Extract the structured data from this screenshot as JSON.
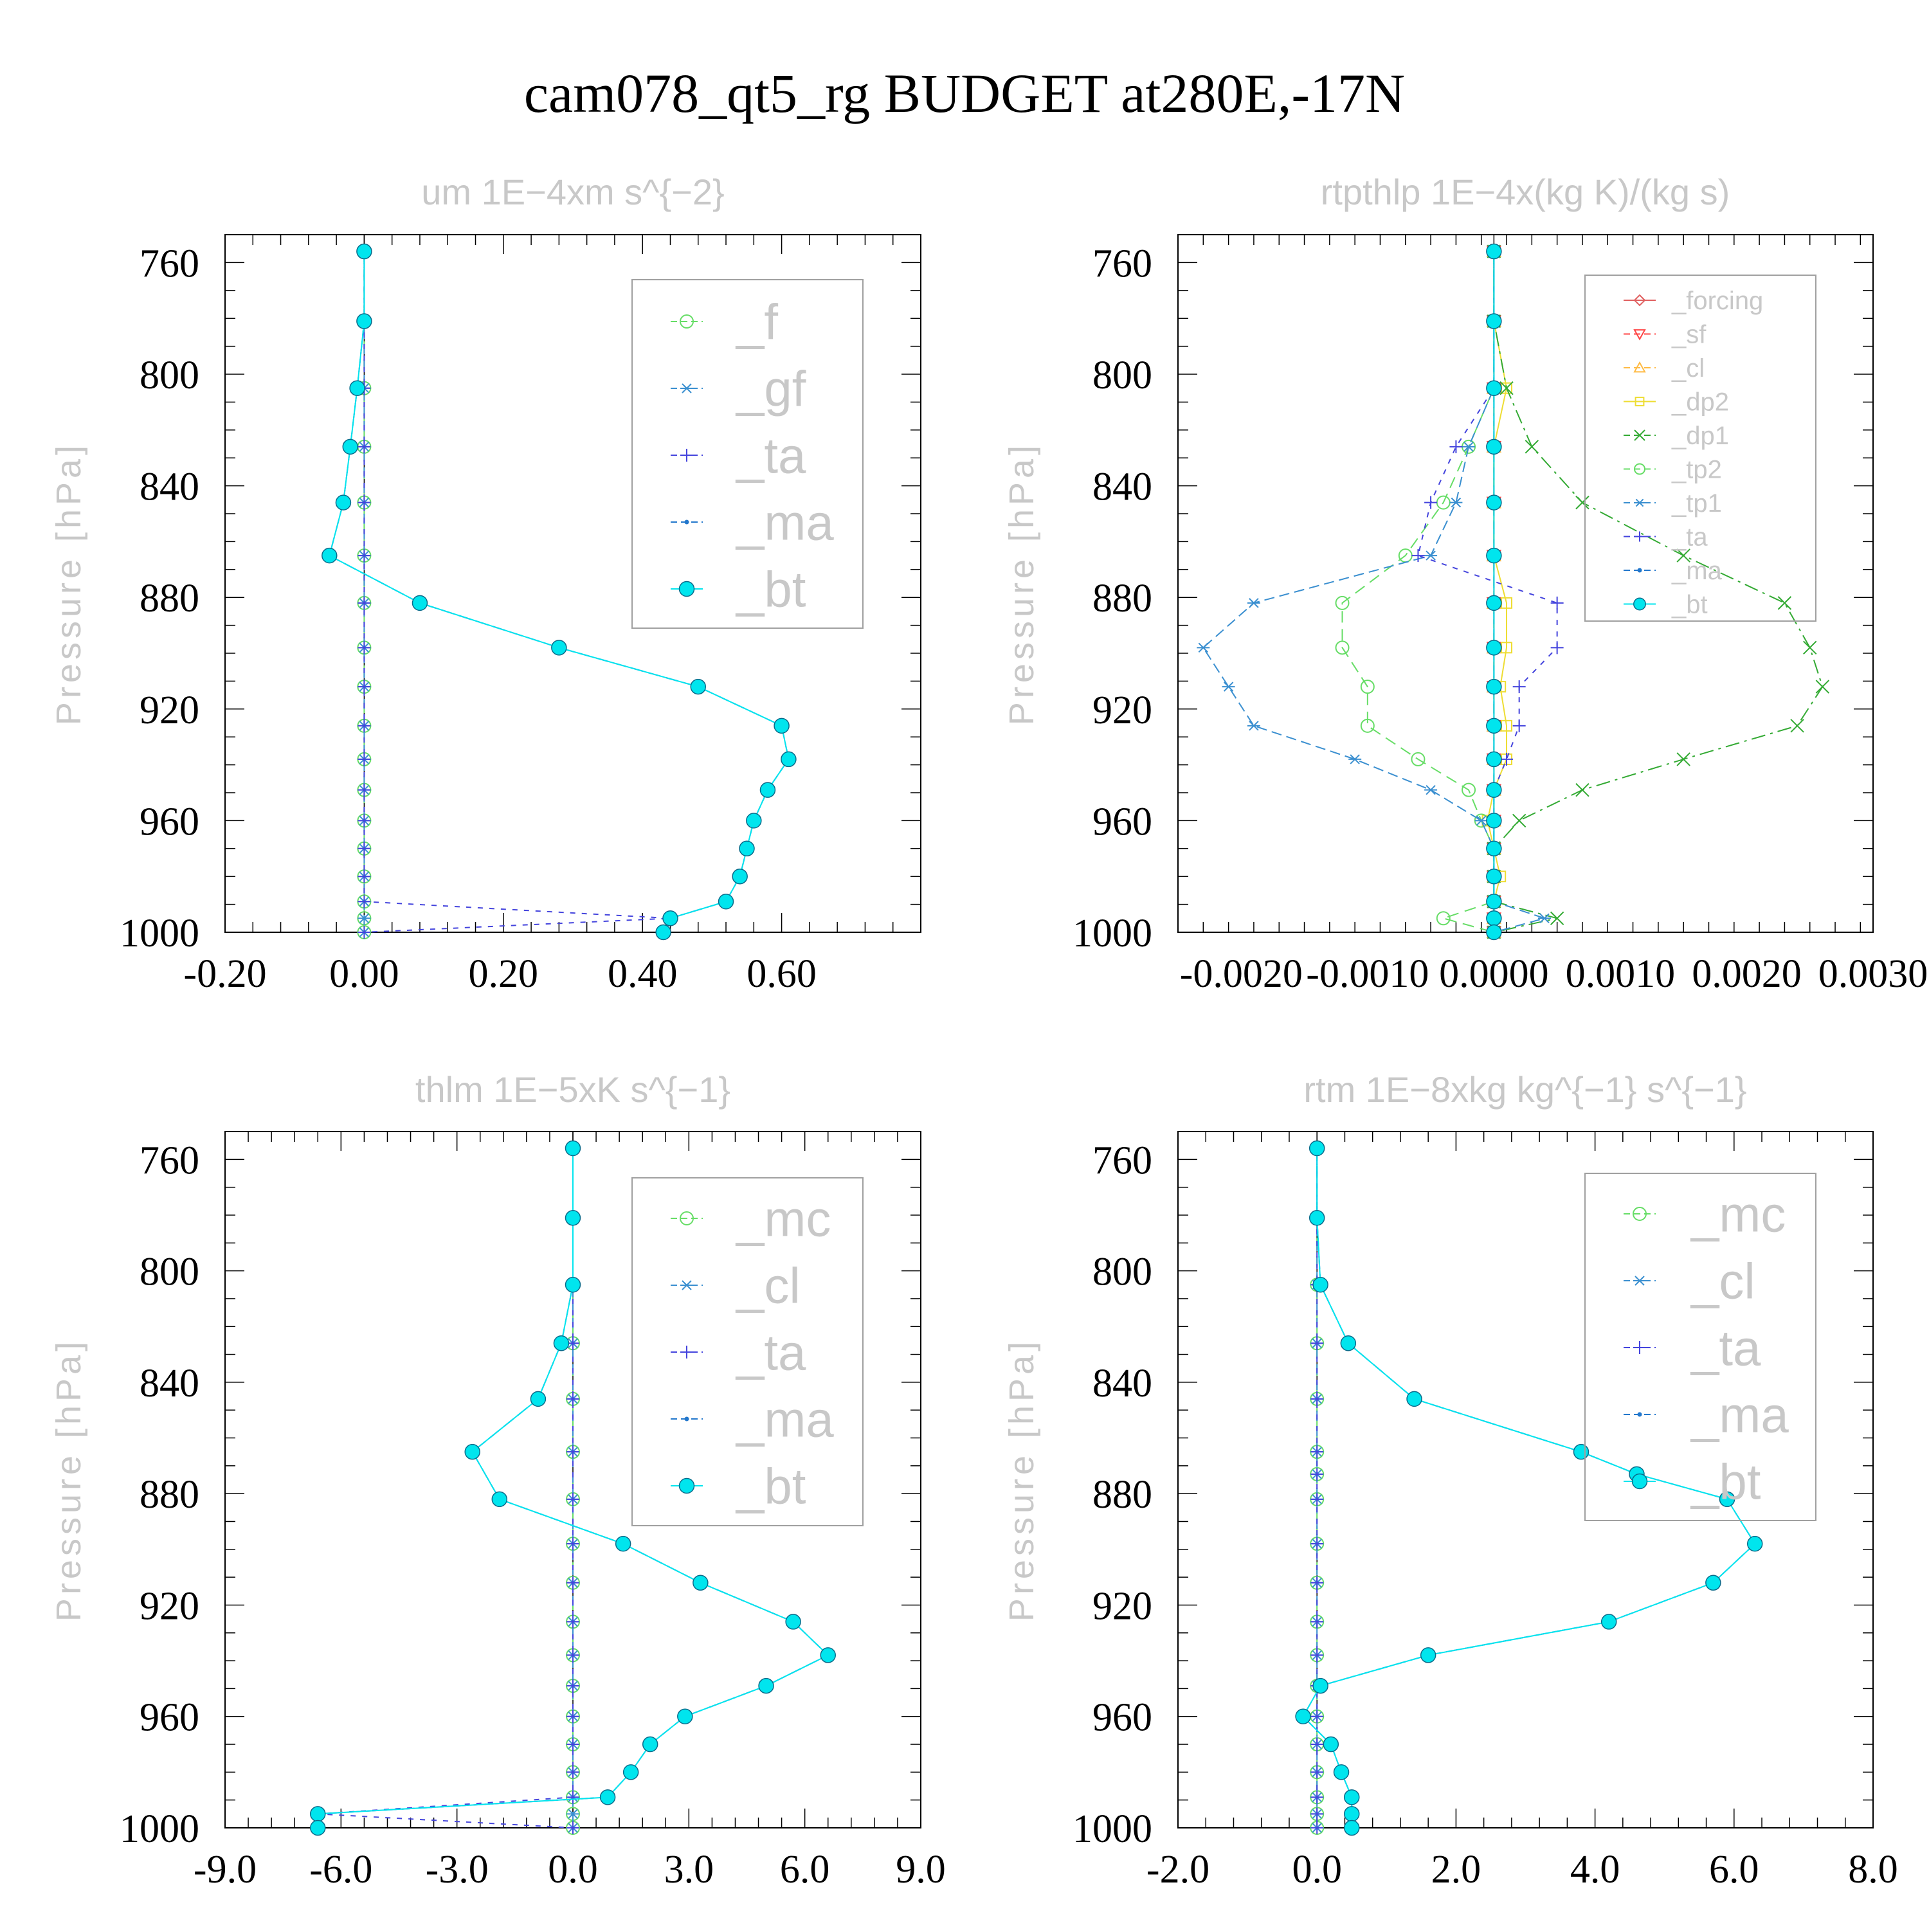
{
  "title": "cam078_qt5_rg  BUDGET at280E,-17N",
  "chart_data": [
    {
      "type": "line",
      "title": "um   1E−4xm s^{−2}",
      "ylabel": "Pressure [hPa]",
      "xlim": [
        -0.2,
        0.8
      ],
      "ylim": [
        1000,
        750
      ],
      "xticks": [
        -0.2,
        0,
        0.2,
        0.4,
        0.6
      ],
      "xtick_labels": [
        "-0.20",
        "0.00",
        "0.20",
        "0.40",
        "0.60"
      ],
      "yticks": [
        760,
        800,
        840,
        880,
        920,
        960,
        1000
      ],
      "ytick_labels": [
        "760",
        "800",
        "840",
        "880",
        "920",
        "960",
        "1000"
      ],
      "legend_position": "top-right",
      "levels": [
        756,
        781,
        805,
        826,
        846,
        865,
        882,
        898,
        912,
        926,
        938,
        949,
        960,
        970,
        980,
        989,
        995,
        1000
      ],
      "series": [
        {
          "name": "_f",
          "color": "#66dd66",
          "marker": "circle",
          "values": [
            0,
            0,
            0,
            0,
            0,
            0,
            0,
            0,
            0,
            0,
            0,
            0,
            0,
            0,
            0,
            0,
            0,
            0
          ]
        },
        {
          "name": "_gf",
          "color": "#3a8fd0",
          "marker": "star",
          "values": [
            0,
            0,
            0,
            0,
            0,
            0,
            0,
            0,
            0,
            0,
            0,
            0,
            0,
            0,
            0,
            0,
            0,
            0
          ]
        },
        {
          "name": "_ta",
          "color": "#4444dd",
          "marker": "plus",
          "values": [
            0,
            0,
            0,
            0,
            0,
            0,
            0,
            0,
            0,
            0,
            0,
            0,
            0,
            0,
            0,
            0,
            0.44,
            0
          ]
        },
        {
          "name": "_ma",
          "color": "#2277cc",
          "marker": "dot",
          "values": [
            0,
            0,
            -0.01,
            -0.02,
            -0.03,
            -0.05,
            0.08,
            0.28,
            0.48,
            0.6,
            0.61,
            0.58,
            0.56,
            0.55,
            0.54,
            0.52,
            0.44,
            0.43
          ]
        },
        {
          "name": "_bt",
          "color": "#00e5ee",
          "marker": "filled-circle",
          "values": [
            0,
            0,
            -0.01,
            -0.02,
            -0.03,
            -0.05,
            0.08,
            0.28,
            0.48,
            0.6,
            0.61,
            0.58,
            0.56,
            0.55,
            0.54,
            0.52,
            0.44,
            0.43
          ]
        }
      ]
    },
    {
      "type": "line",
      "title": "rtpthlp   1E−4x(kg K)/(kg s)",
      "ylabel": "Pressure [hPa]",
      "xlim": [
        -0.0025,
        0.003
      ],
      "ylim": [
        1000,
        750
      ],
      "xticks": [
        -0.002,
        -0.001,
        0,
        0.001,
        0.002,
        0.003
      ],
      "xtick_labels": [
        "-0.0020",
        "-0.0010",
        "0.0000",
        "0.0010",
        "0.0020",
        "0.0030"
      ],
      "yticks": [
        760,
        800,
        840,
        880,
        920,
        960,
        1000
      ],
      "ytick_labels": [
        "760",
        "800",
        "840",
        "880",
        "920",
        "960",
        "1000"
      ],
      "legend_position": "top-right",
      "levels": [
        756,
        781,
        805,
        826,
        846,
        865,
        882,
        898,
        912,
        926,
        938,
        949,
        960,
        970,
        980,
        989,
        995,
        1000
      ],
      "series": [
        {
          "name": "_forcing",
          "color": "#e06060",
          "marker": "diamond",
          "values": [
            0,
            0,
            0,
            0,
            0,
            0,
            0,
            0,
            0,
            0,
            0,
            0,
            0,
            0,
            0,
            0,
            0,
            0
          ]
        },
        {
          "name": "_sf",
          "color": "#ff4444",
          "marker": "triangle-down",
          "values": [
            0,
            0,
            0,
            0,
            0,
            0,
            0,
            0,
            0,
            0,
            0,
            0,
            0,
            0,
            0,
            0,
            0,
            0
          ]
        },
        {
          "name": "_cl",
          "color": "#ffbb44",
          "marker": "triangle-up",
          "values": [
            0,
            0,
            0,
            0,
            0,
            0,
            0,
            0,
            0,
            0,
            0,
            0,
            0,
            0,
            0,
            0,
            0,
            0
          ]
        },
        {
          "name": "_dp2",
          "color": "#eedd33",
          "marker": "square",
          "values": [
            0,
            0,
            0.0001,
            0,
            0,
            0,
            0.0001,
            0.0001,
            5e-05,
            0.0001,
            0.0001,
            0,
            -5e-05,
            0,
            5e-05,
            0,
            0,
            0
          ]
        },
        {
          "name": "_dp1",
          "color": "#33aa33",
          "marker": "x",
          "values": [
            0,
            0,
            0.0001,
            0.0003,
            0.0007,
            0.0015,
            0.0023,
            0.0025,
            0.0026,
            0.0024,
            0.0015,
            0.0007,
            0.0002,
            0,
            0,
            0,
            0.0005,
            0
          ]
        },
        {
          "name": "_tp2",
          "color": "#66dd66",
          "marker": "circle",
          "values": [
            0,
            0,
            0,
            -0.0002,
            -0.0004,
            -0.0007,
            -0.0012,
            -0.0012,
            -0.001,
            -0.001,
            -0.0006,
            -0.0002,
            -0.0001,
            0,
            0,
            0,
            -0.0004,
            0
          ]
        },
        {
          "name": "_tp1",
          "color": "#3a8fd0",
          "marker": "star",
          "values": [
            0,
            0,
            0,
            -0.0002,
            -0.0003,
            -0.0005,
            -0.0019,
            -0.0023,
            -0.0021,
            -0.0019,
            -0.0011,
            -0.0005,
            -0.0001,
            0,
            0,
            0,
            0.0004,
            0
          ]
        },
        {
          "name": "_ta",
          "color": "#4444dd",
          "marker": "plus",
          "values": [
            0,
            0,
            0,
            -0.0003,
            -0.0005,
            -0.0006,
            0.0005,
            0.0005,
            0.0002,
            0.0002,
            0.0001,
            0,
            0,
            0,
            0,
            0,
            0,
            0
          ]
        },
        {
          "name": "_ma",
          "color": "#2277cc",
          "marker": "dot",
          "values": [
            0,
            0,
            0,
            0,
            0,
            0,
            0,
            0,
            0,
            0,
            0,
            0,
            0,
            0,
            0,
            0,
            0,
            0
          ]
        },
        {
          "name": "_bt",
          "color": "#00e5ee",
          "marker": "filled-circle",
          "values": [
            0,
            0,
            0,
            0,
            0,
            0,
            0,
            0,
            0,
            0,
            0,
            0,
            0,
            0,
            0,
            0,
            0,
            0
          ]
        }
      ]
    },
    {
      "type": "line",
      "title": "thlm   1E−5xK s^{−1}",
      "ylabel": "Pressure [hPa]",
      "xlim": [
        -9,
        9
      ],
      "ylim": [
        1000,
        750
      ],
      "xticks": [
        -9,
        -6,
        -3,
        0,
        3,
        6,
        9
      ],
      "xtick_labels": [
        "-9.0",
        "-6.0",
        "-3.0",
        "0.0",
        "3.0",
        "6.0",
        "9.0"
      ],
      "yticks": [
        760,
        800,
        840,
        880,
        920,
        960,
        1000
      ],
      "ytick_labels": [
        "760",
        "800",
        "840",
        "880",
        "920",
        "960",
        "1000"
      ],
      "legend_position": "top-right",
      "levels": [
        756,
        781,
        805,
        826,
        846,
        865,
        882,
        898,
        912,
        926,
        938,
        949,
        960,
        970,
        980,
        989,
        995,
        1000
      ],
      "series": [
        {
          "name": "_mc",
          "color": "#66dd66",
          "marker": "circle",
          "values": [
            0,
            0,
            0,
            0,
            0,
            0,
            0,
            0,
            0,
            0,
            0,
            0,
            0,
            0,
            0,
            0,
            0,
            0
          ]
        },
        {
          "name": "_cl",
          "color": "#3a8fd0",
          "marker": "star",
          "values": [
            0,
            0,
            0,
            0,
            0,
            0,
            0,
            0,
            0,
            0,
            0,
            0,
            0,
            0,
            0,
            0,
            0,
            0
          ]
        },
        {
          "name": "_ta",
          "color": "#4444dd",
          "marker": "plus",
          "values": [
            0,
            0,
            0,
            0,
            0,
            0,
            0,
            0,
            0,
            0,
            0,
            0,
            0,
            0,
            0,
            0,
            -6.6,
            0
          ]
        },
        {
          "name": "_ma",
          "color": "#2277cc",
          "marker": "dot",
          "values": [
            0,
            0,
            0,
            -0.3,
            -0.9,
            -2.6,
            -1.9,
            1.3,
            3.3,
            5.7,
            6.6,
            5,
            2.9,
            2,
            1.5,
            0.9,
            -6.6,
            -6.6
          ]
        },
        {
          "name": "_bt",
          "color": "#00e5ee",
          "marker": "filled-circle",
          "values": [
            0,
            0,
            0,
            -0.3,
            -0.9,
            -2.6,
            -1.9,
            1.3,
            3.3,
            5.7,
            6.6,
            5,
            2.9,
            2,
            1.5,
            0.9,
            -6.6,
            -6.6
          ]
        }
      ]
    },
    {
      "type": "line",
      "title": "rtm   1E−8xkg kg^{−1} s^{−1}",
      "ylabel": "Pressure [hPa]",
      "xlim": [
        -2,
        8
      ],
      "ylim": [
        1000,
        750
      ],
      "xticks": [
        -2,
        0,
        2,
        4,
        6,
        8
      ],
      "xtick_labels": [
        "-2.0",
        "0.0",
        "2.0",
        "4.0",
        "6.0",
        "8.0"
      ],
      "yticks": [
        760,
        800,
        840,
        880,
        920,
        960,
        1000
      ],
      "ytick_labels": [
        "760",
        "800",
        "840",
        "880",
        "920",
        "960",
        "1000"
      ],
      "legend_position": "top-right",
      "levels": [
        756,
        781,
        805,
        826,
        846,
        865,
        873,
        882,
        898,
        912,
        926,
        938,
        949,
        960,
        970,
        980,
        989,
        995,
        1000
      ],
      "series": [
        {
          "name": "_mc",
          "color": "#66dd66",
          "marker": "circle",
          "values": [
            0,
            0,
            0,
            0,
            0,
            0,
            0,
            0,
            0,
            0,
            0,
            0,
            0,
            0,
            0,
            0,
            0,
            0,
            0
          ]
        },
        {
          "name": "_cl",
          "color": "#3a8fd0",
          "marker": "star",
          "values": [
            0,
            0,
            0,
            0,
            0,
            0,
            0,
            0,
            0,
            0,
            0,
            0,
            0,
            0,
            0,
            0,
            0,
            0,
            0
          ]
        },
        {
          "name": "_ta",
          "color": "#4444dd",
          "marker": "plus",
          "values": [
            0,
            0,
            0,
            0,
            0,
            0,
            0,
            0,
            0,
            0,
            0,
            0,
            0,
            0,
            0,
            0,
            0,
            0,
            0
          ]
        },
        {
          "name": "_ma",
          "color": "#2277cc",
          "marker": "dot",
          "values": [
            0,
            0,
            0.05,
            0.45,
            1.4,
            3.8,
            4.6,
            5.9,
            6.3,
            5.7,
            4.2,
            1.6,
            0.05,
            -0.2,
            0.2,
            0.35,
            0.5,
            0.5,
            0.5
          ]
        },
        {
          "name": "_bt",
          "color": "#00e5ee",
          "marker": "filled-circle",
          "values": [
            0,
            0,
            0.05,
            0.45,
            1.4,
            3.8,
            4.6,
            5.9,
            6.3,
            5.7,
            4.2,
            1.6,
            0.05,
            -0.2,
            0.2,
            0.35,
            0.5,
            0.5,
            0.5
          ]
        }
      ]
    }
  ]
}
